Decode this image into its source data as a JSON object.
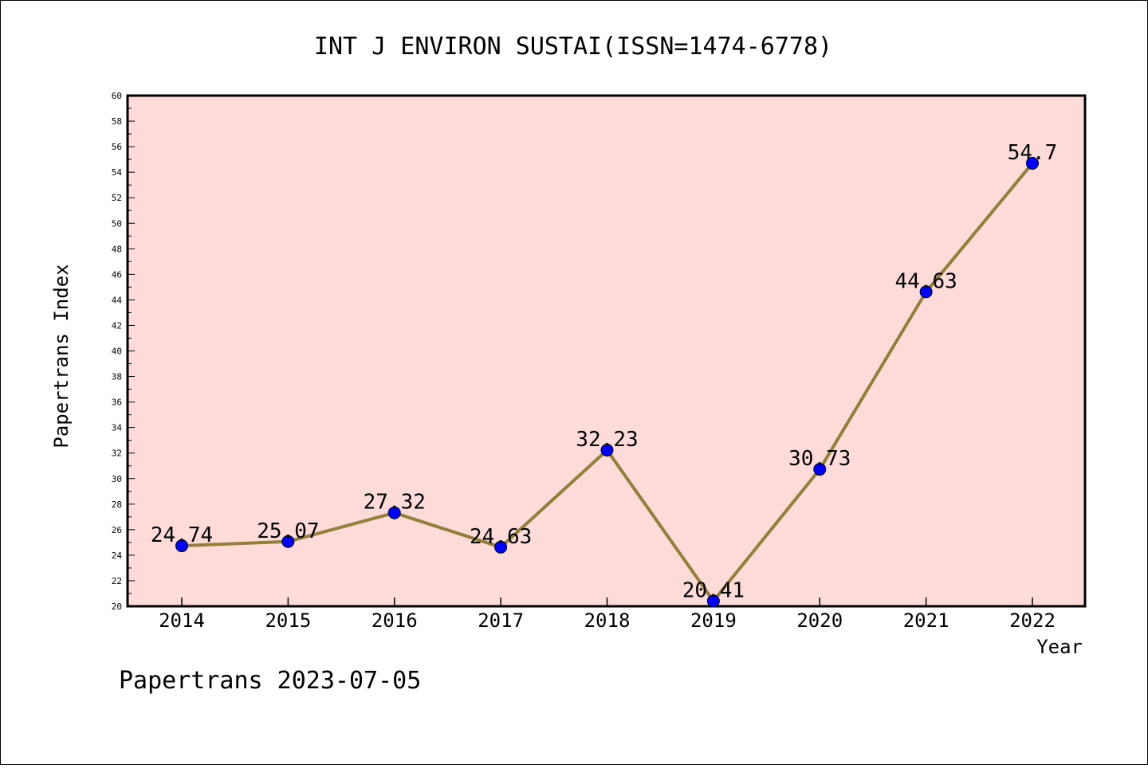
{
  "chart_data": {
    "type": "line",
    "title": "INT J ENVIRON SUSTAI(ISSN=1474-6778)",
    "xlabel": "Year",
    "ylabel": "Papertrans Index",
    "x": [
      "2014",
      "2015",
      "2016",
      "2017",
      "2018",
      "2019",
      "2020",
      "2021",
      "2022"
    ],
    "series": [
      {
        "values": [
          24.74,
          25.07,
          27.32,
          24.63,
          32.23,
          20.41,
          30.73,
          44.63,
          54.7
        ],
        "labels": [
          "24.74",
          "25.07",
          "27.32",
          "24.63",
          "32.23",
          "20.41",
          "30.73",
          "44.63",
          "54.7"
        ]
      }
    ],
    "ylim": [
      20,
      60
    ],
    "y_ticks": [
      "20",
      "22",
      "24",
      "26",
      "28",
      "30",
      "32",
      "34",
      "36",
      "38",
      "40",
      "42",
      "44",
      "46",
      "48",
      "50",
      "52",
      "54",
      "56",
      "58",
      "60"
    ],
    "grid": false,
    "legend": "none",
    "colors": {
      "plot_background": "#FDDBD9",
      "line": "#947F3A",
      "marker": "#0000FF"
    }
  },
  "footer": {
    "text": "Papertrans 2023-07-05"
  }
}
